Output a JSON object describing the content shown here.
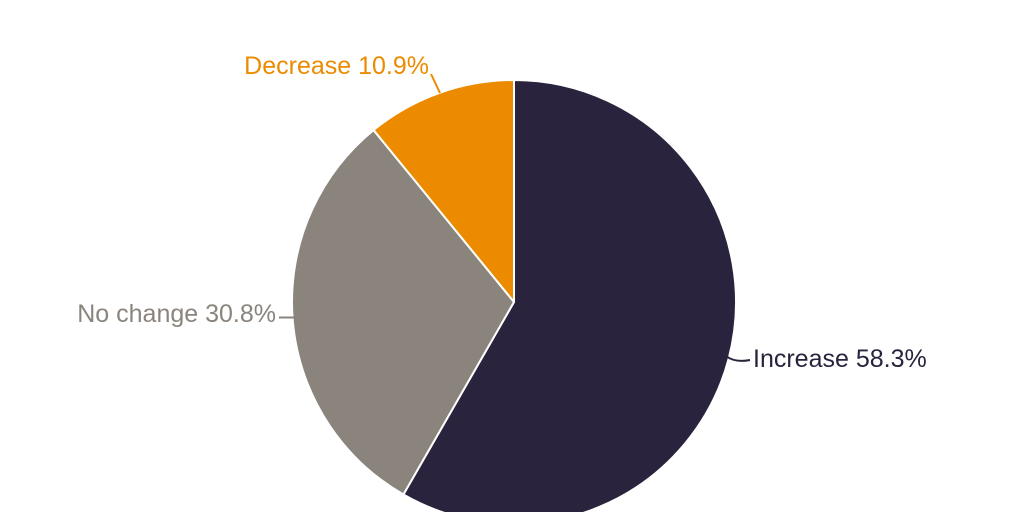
{
  "figure": {
    "background_color": "#ffffff"
  },
  "chart_data": {
    "type": "pie",
    "title": "",
    "direction": "clockwise",
    "start_angle_deg": 0,
    "slice_border_color": "#ffffff",
    "legend": "none",
    "label_placement": "outside-with-leader-lines",
    "categories": [
      "Increase",
      "No change",
      "Decrease"
    ],
    "values": [
      58.3,
      30.8,
      10.9
    ],
    "slices": [
      {
        "label": "Increase",
        "value": 58.3,
        "display": "Increase 58.3%",
        "color": "#29233D"
      },
      {
        "label": "No change",
        "value": 30.8,
        "display": "No change 30.8%",
        "color": "#8B847D"
      },
      {
        "label": "Decrease",
        "value": 10.9,
        "display": "Decrease 10.9%",
        "color": "#EC8B00"
      }
    ]
  }
}
